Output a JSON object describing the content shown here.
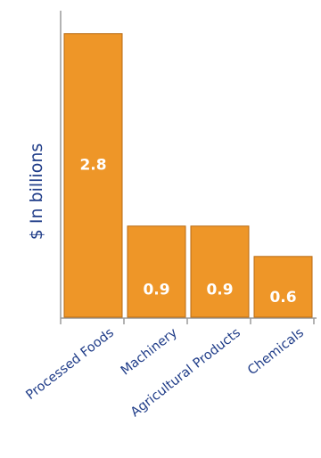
{
  "chart_data": {
    "type": "bar",
    "categories": [
      "Processed Foods",
      "Machinery",
      "Agricultural Products",
      "Chemicals"
    ],
    "values": [
      2.8,
      0.9,
      0.9,
      0.6
    ],
    "data_labels": [
      "2.8",
      "0.9",
      "0.9",
      "0.6"
    ],
    "title": "",
    "xlabel": "",
    "ylabel": "$ In billions",
    "ylim": [
      0,
      3.0
    ],
    "grid": false,
    "legend": "none",
    "colors": {
      "bar_fill": "#EE9628",
      "bar_stroke": "#B86A12",
      "axis": "#9a9a9a",
      "text": "#1F3C88",
      "data_label": "#FFFFFF"
    }
  }
}
